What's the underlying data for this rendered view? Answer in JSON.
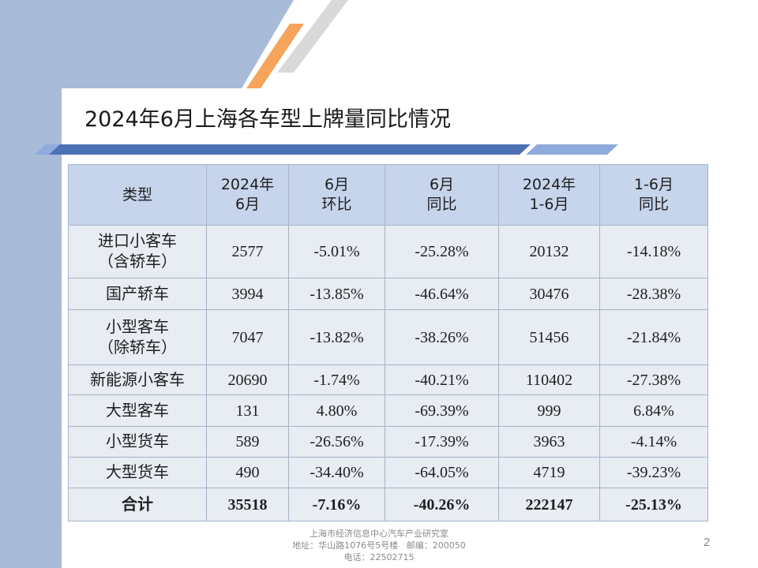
{
  "slide": {
    "title": "2024年6月上海各车型上牌量同比情况",
    "page_number": "2"
  },
  "table": {
    "headers": [
      "类型",
      "2024年\n6月",
      "6月\n环比",
      "6月\n同比",
      "2024年\n1-6月",
      "1-6月\n同比"
    ],
    "rows": [
      {
        "label": "进口小客车\n（含轿车）",
        "values": [
          "2577",
          "-5.01%",
          "-25.28%",
          "20132",
          "-14.18%"
        ]
      },
      {
        "label": "国产轿车",
        "values": [
          "3994",
          "-13.85%",
          "-46.64%",
          "30476",
          "-28.38%"
        ]
      },
      {
        "label": "小型客车\n（除轿车）",
        "values": [
          "7047",
          "-13.82%",
          "-38.26%",
          "51456",
          "-21.84%"
        ]
      },
      {
        "label": "新能源小客车",
        "values": [
          "20690",
          "-1.74%",
          "-40.21%",
          "110402",
          "-27.38%"
        ]
      },
      {
        "label": "大型客车",
        "values": [
          "131",
          "4.80%",
          "-69.39%",
          "999",
          "6.84%"
        ]
      },
      {
        "label": "小型货车",
        "values": [
          "589",
          "-26.56%",
          "-17.39%",
          "3963",
          "-4.14%"
        ]
      },
      {
        "label": "大型货车",
        "values": [
          "490",
          "-34.40%",
          "-64.05%",
          "4719",
          "-39.23%"
        ]
      },
      {
        "label": "合计",
        "values": [
          "35518",
          "-7.16%",
          "-40.26%",
          "222147",
          "-25.13%"
        ]
      }
    ]
  },
  "footer": {
    "line1": "上海市经济信息中心汽车产业研究室",
    "line2": "地址：华山路1076号5号楼   邮编：200050",
    "line3": "电话：22502715"
  },
  "colors": {
    "side_band": "#a8bbd9",
    "accent_orange": "#f6a45b",
    "accent_gray": "#d9d9d9",
    "title_bar_blue": "#4b70b4",
    "title_bar_light_blue": "#8faadc",
    "header_bg": "#c6d4ec",
    "row_bg": "#e8ecf3"
  }
}
